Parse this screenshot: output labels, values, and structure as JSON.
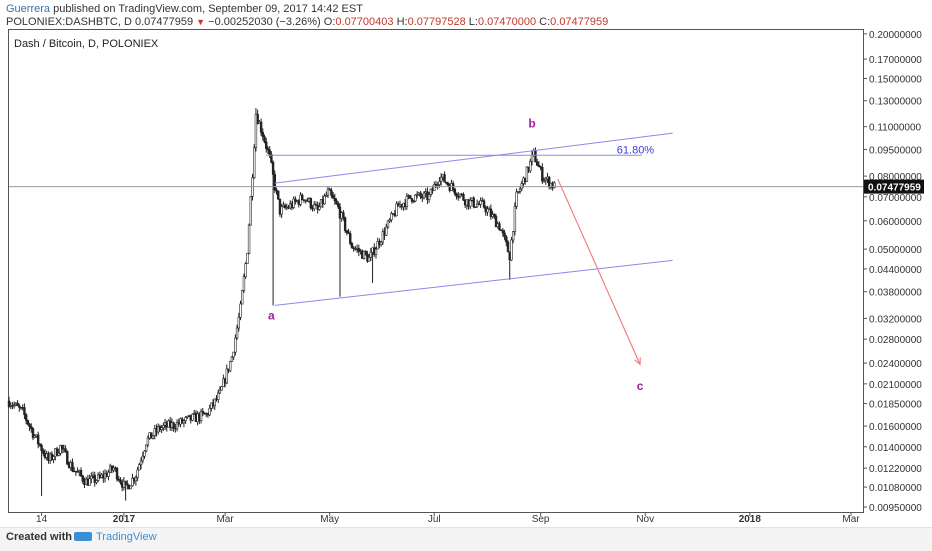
{
  "header": {
    "author": "Guerrera",
    "published_text": " published on TradingView.com, September 09, 2017 14:42 EST",
    "symbol": "POLONIEX:DASHBTC, D",
    "last_price": "0.07477959",
    "change_arrow": "▼",
    "change": "−0.00252030 (−3.26%)",
    "open_label": "O:",
    "open": "0.07700403",
    "high_label": "H:",
    "high": "0.07797528",
    "low_label": "L:",
    "low": "0.07470000",
    "close_label": "C:",
    "close": "0.07477959"
  },
  "chart_data": {
    "type": "candlestick",
    "title": "Dash / Bitcoin, D, POLONIEX",
    "scale": "log",
    "ylim": [
      0.0092,
      0.205
    ],
    "xlim": [
      "2016-10-26",
      "2018-03-08"
    ],
    "x_ticks": [
      "14",
      "2017",
      "Mar",
      "May",
      "Jul",
      "Sep",
      "Nov",
      "2018",
      "Mar"
    ],
    "x_tick_dates": [
      "2016-11-14",
      "2017-01-01",
      "2017-03-01",
      "2017-05-01",
      "2017-07-01",
      "2017-09-01",
      "2017-11-01",
      "2018-01-01",
      "2018-03-01"
    ],
    "y_ticks": [
      "0.20000000",
      "0.17000000",
      "0.15000000",
      "0.13000000",
      "0.11000000",
      "0.09500000",
      "0.08000000",
      "0.07000000",
      "0.06000000",
      "0.05000000",
      "0.04400000",
      "0.03800000",
      "0.03200000",
      "0.02800000",
      "0.02400000",
      "0.02100000",
      "0.01850000",
      "0.01600000",
      "0.01400000",
      "0.01220000",
      "0.01080000",
      "0.00950000"
    ],
    "last_price_label": "0.07477959",
    "last_price": 0.07477959,
    "price_path": [
      [
        "2016-10-26",
        0.0188
      ],
      [
        "2016-11-03",
        0.0175
      ],
      [
        "2016-11-10",
        0.015
      ],
      [
        "2016-11-18",
        0.0128
      ],
      [
        "2016-11-25",
        0.014
      ],
      [
        "2016-12-02",
        0.0122
      ],
      [
        "2016-12-10",
        0.0112
      ],
      [
        "2016-12-18",
        0.0114
      ],
      [
        "2016-12-26",
        0.0122
      ],
      [
        "2017-01-02",
        0.0107
      ],
      [
        "2017-01-08",
        0.0117
      ],
      [
        "2017-01-14",
        0.0145
      ],
      [
        "2017-01-22",
        0.0158
      ],
      [
        "2017-02-01",
        0.0162
      ],
      [
        "2017-02-10",
        0.0168
      ],
      [
        "2017-02-18",
        0.0172
      ],
      [
        "2017-02-26",
        0.0196
      ],
      [
        "2017-03-05",
        0.025
      ],
      [
        "2017-03-10",
        0.034
      ],
      [
        "2017-03-14",
        0.05
      ],
      [
        "2017-03-17",
        0.082
      ],
      [
        "2017-03-19",
        0.12
      ],
      [
        "2017-03-23",
        0.105
      ],
      [
        "2017-03-27",
        0.09
      ],
      [
        "2017-03-30",
        0.075
      ],
      [
        "2017-04-02",
        0.064
      ],
      [
        "2017-04-08",
        0.066
      ],
      [
        "2017-04-16",
        0.07
      ],
      [
        "2017-04-24",
        0.064
      ],
      [
        "2017-04-30",
        0.072
      ],
      [
        "2017-05-06",
        0.065
      ],
      [
        "2017-05-14",
        0.051
      ],
      [
        "2017-05-24",
        0.047
      ],
      [
        "2017-06-02",
        0.056
      ],
      [
        "2017-06-10",
        0.066
      ],
      [
        "2017-06-18",
        0.07
      ],
      [
        "2017-06-28",
        0.07
      ],
      [
        "2017-07-04",
        0.08
      ],
      [
        "2017-07-12",
        0.074
      ],
      [
        "2017-07-20",
        0.068
      ],
      [
        "2017-07-30",
        0.066
      ],
      [
        "2017-08-08",
        0.058
      ],
      [
        "2017-08-14",
        0.048
      ],
      [
        "2017-08-18",
        0.07
      ],
      [
        "2017-08-24",
        0.082
      ],
      [
        "2017-08-28",
        0.092
      ],
      [
        "2017-09-02",
        0.08
      ],
      [
        "2017-09-09",
        0.0748
      ]
    ],
    "extremes": [
      [
        "2016-11-14",
        0.0102
      ],
      [
        "2017-01-02",
        0.0099
      ],
      [
        "2017-03-19",
        0.124
      ],
      [
        "2017-03-29",
        0.0348
      ],
      [
        "2017-05-07",
        0.0368
      ],
      [
        "2017-05-26",
        0.0402
      ],
      [
        "2017-08-14",
        0.041
      ],
      [
        "2017-08-27",
        0.0945
      ]
    ],
    "annotations": {
      "channel_upper": [
        [
          "2017-03-30",
          0.0765
        ],
        [
          "2017-11-17",
          0.1055
        ]
      ],
      "channel_lower": [
        [
          "2017-03-30",
          0.0348
        ],
        [
          "2017-11-17",
          0.0465
        ]
      ],
      "fib_level": {
        "price": 0.0915,
        "from": "2017-03-25",
        "to": "2017-10-30",
        "label": "61.80%"
      },
      "projection_arrow": [
        [
          "2017-09-11",
          0.0785
        ],
        [
          "2017-10-29",
          0.0238
        ]
      ],
      "wave_labels": [
        {
          "text": "a",
          "date": "2017-03-28",
          "price": 0.0318
        },
        {
          "text": "b",
          "date": "2017-08-27",
          "price": 0.1095
        },
        {
          "text": "c",
          "date": "2017-10-29",
          "price": 0.0202
        }
      ]
    },
    "colors": {
      "candles": "#222222",
      "channel": "#8a8ae8",
      "fib_text": "#3b3bd4",
      "arrow": "#f08080",
      "wave_label": "#a01ea0",
      "price_tag": "#111111"
    }
  },
  "footer": {
    "created_with": "Created with",
    "brand": "TradingView"
  }
}
